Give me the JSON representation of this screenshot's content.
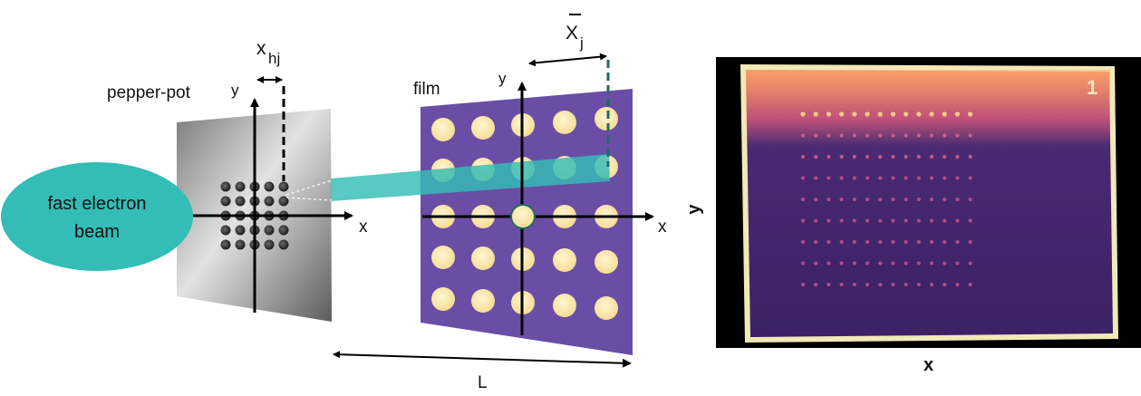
{
  "diagram": {
    "pepper_pot_label": "pepper-pot",
    "film_label": "film",
    "beam_label_line1": "fast electron",
    "beam_label_line2": "beam",
    "pepper_pot_axis_x": "x",
    "pepper_pot_axis_y": "y",
    "film_axis_x": "x",
    "film_axis_y": "y",
    "hole_offset_symbol": "x",
    "hole_offset_subscript": "hj",
    "beamlet_centroid_symbol": "X",
    "beamlet_centroid_subscript": "j",
    "distance_label": "L",
    "film_grid_rows": 5,
    "film_grid_cols": 5,
    "pepper_pot_hole_grid": 5
  },
  "photo": {
    "axis_x": "x",
    "axis_y": "y",
    "frame_corner_mark": "1",
    "dot_rows": 9,
    "dot_cols": 14
  },
  "colors": {
    "beam": "#33bdb6",
    "film": "#6a4ea5",
    "spot": "#fbe8a8",
    "plate_dark": "#6d6d6d",
    "plate_light": "#dcdcdc",
    "photo_background": "#3a1f5f",
    "photo_hot": "#f39a5f"
  }
}
